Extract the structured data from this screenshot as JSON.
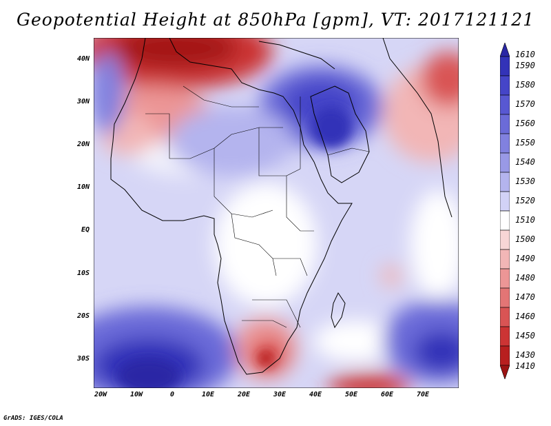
{
  "title": "Geopotential Height at 850hPa [gpm], VT: 2017121121",
  "credit": "GrADS: IGES/COLA",
  "map": {
    "variable": "Geopotential Height",
    "level": "850hPa",
    "units": "gpm",
    "valid_time": "2017121121",
    "lon_range": [
      -22,
      80
    ],
    "lat_range": [
      -37,
      45
    ],
    "lat_ticks": [
      "40N",
      "30N",
      "20N",
      "10N",
      "EQ",
      "10S",
      "20S",
      "30S"
    ],
    "lon_ticks": [
      "20W",
      "10W",
      "0",
      "10E",
      "20E",
      "30E",
      "40E",
      "50E",
      "60E",
      "70E"
    ]
  },
  "colorbar": {
    "labels": [
      "1610",
      "1590",
      "1580",
      "1570",
      "1560",
      "1550",
      "1540",
      "1530",
      "1520",
      "1510",
      "1500",
      "1490",
      "1480",
      "1470",
      "1460",
      "1450",
      "1430",
      "1410"
    ],
    "colors": [
      "#2a27a5",
      "#3333b8",
      "#4545c8",
      "#5858d2",
      "#6b6bd8",
      "#8181df",
      "#9999e6",
      "#b4b4ee",
      "#d2d2f6",
      "#ffffff",
      "#f8d6d6",
      "#f2b6b6",
      "#ec9696",
      "#e37575",
      "#d95454",
      "#cc3434",
      "#b81f1f",
      "#9c1414"
    ]
  }
}
